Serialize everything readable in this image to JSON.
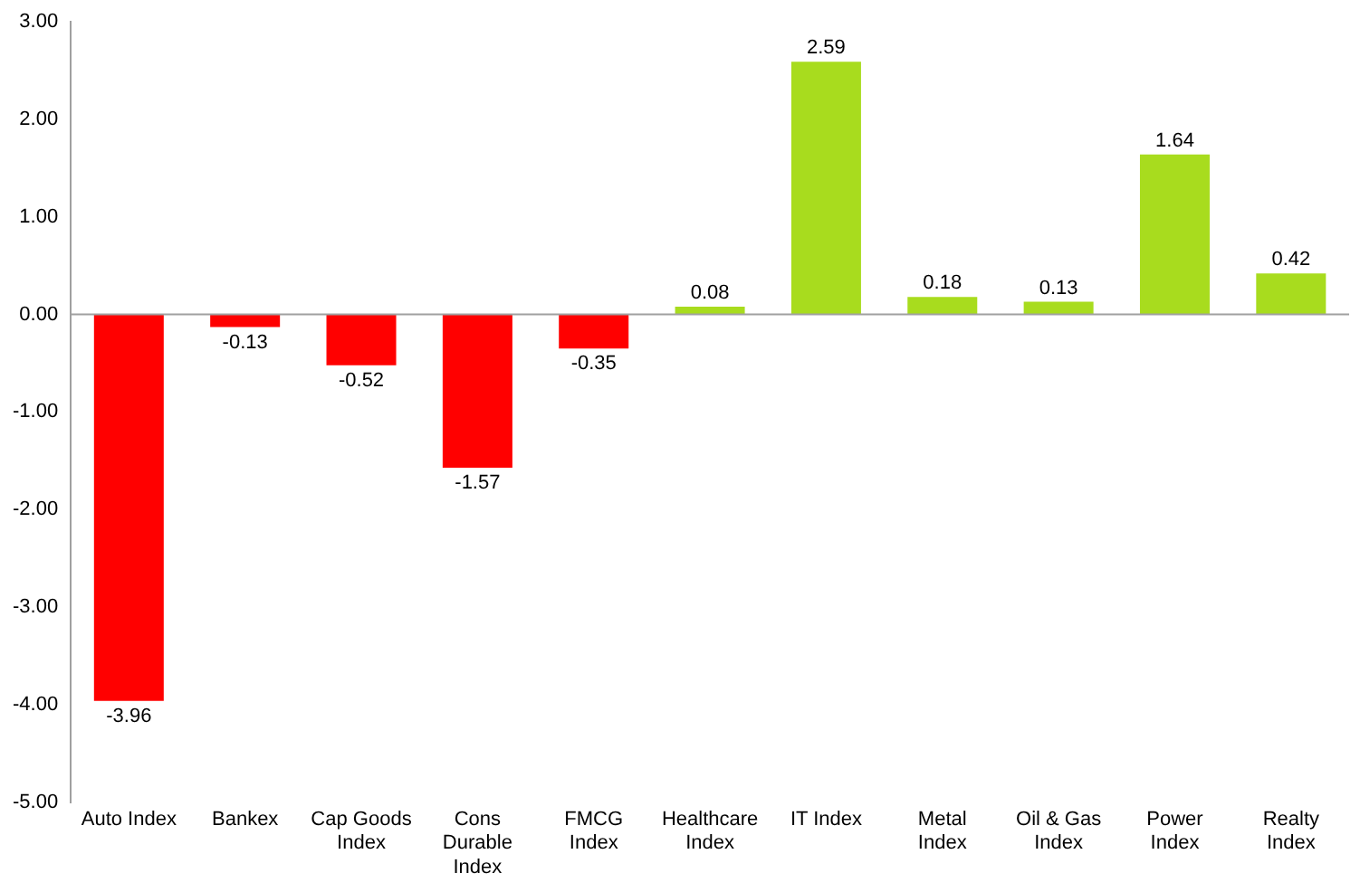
{
  "chart_data": {
    "type": "bar",
    "categories": [
      "Auto Index",
      "Bankex",
      "Cap Goods Index",
      "Cons Durable Index",
      "FMCG Index",
      "Healthcare Index",
      "IT Index",
      "Metal Index",
      "Oil & Gas Index",
      "Power Index",
      "Realty Index"
    ],
    "values": [
      -3.96,
      -0.13,
      -0.52,
      -1.57,
      -0.35,
      0.08,
      2.59,
      0.18,
      0.13,
      1.64,
      0.42
    ],
    "colors": [
      "#ff0000",
      "#ff0000",
      "#ff0000",
      "#ff0000",
      "#ff0000",
      "#a8dc1e",
      "#a8dc1e",
      "#a8dc1e",
      "#a8dc1e",
      "#a8dc1e",
      "#a8dc1e"
    ],
    "ylim": [
      -5,
      3
    ],
    "yticks": [
      {
        "value": -5,
        "label": "-5.00"
      },
      {
        "value": -4,
        "label": "-4.00"
      },
      {
        "value": -3,
        "label": "-3.00"
      },
      {
        "value": -2,
        "label": "-2.00"
      },
      {
        "value": -1,
        "label": "-1.00"
      },
      {
        "value": 0,
        "label": "0.00"
      },
      {
        "value": 1,
        "label": "1.00"
      },
      {
        "value": 2,
        "label": "2.00"
      },
      {
        "value": 3,
        "label": "3.00"
      }
    ],
    "ref_lines": [
      {
        "axis": "y",
        "value": 0,
        "color": "#a0a0a0"
      }
    ],
    "data_labels": true,
    "grid": false,
    "legend": false
  }
}
